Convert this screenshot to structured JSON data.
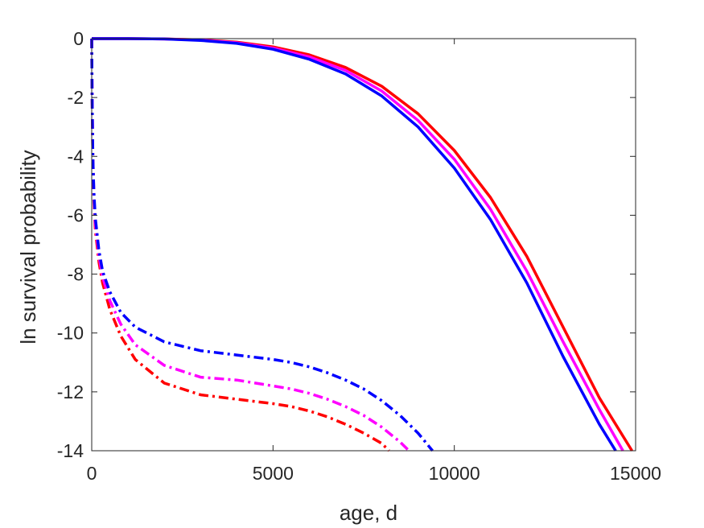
{
  "chart_data": {
    "type": "line",
    "xlabel": "age, d",
    "ylabel": "ln survival probability",
    "xlim": [
      0,
      15000
    ],
    "ylim": [
      -14,
      0
    ],
    "xticks": [
      0,
      5000,
      10000,
      15000
    ],
    "yticks": [
      0,
      -2,
      -4,
      -6,
      -8,
      -10,
      -12,
      -14
    ],
    "grid": false,
    "box": true,
    "series": [
      {
        "color": "#ff0000",
        "style": "solid",
        "x": [
          0,
          50,
          1000,
          2000,
          3000,
          4000,
          5000,
          6000,
          7000,
          8000,
          9000,
          10000,
          11000,
          12000,
          13000,
          14000,
          14900
        ],
        "y": [
          0,
          0,
          0,
          -0.01,
          -0.04,
          -0.12,
          -0.28,
          -0.55,
          -0.98,
          -1.62,
          -2.55,
          -3.8,
          -5.4,
          -7.4,
          -9.8,
          -12.2,
          -14
        ]
      },
      {
        "color": "#ff00ff",
        "style": "solid",
        "x": [
          0,
          50,
          1000,
          2000,
          3000,
          4000,
          5000,
          6000,
          7000,
          8000,
          9000,
          10000,
          11000,
          12000,
          13000,
          14000,
          14650
        ],
        "y": [
          0,
          0,
          0,
          -0.01,
          -0.05,
          -0.14,
          -0.32,
          -0.62,
          -1.08,
          -1.78,
          -2.78,
          -4.1,
          -5.8,
          -7.9,
          -10.3,
          -12.6,
          -14
        ]
      },
      {
        "color": "#0000ff",
        "style": "solid",
        "x": [
          0,
          50,
          1000,
          2000,
          3000,
          4000,
          5000,
          6000,
          7000,
          8000,
          9000,
          10000,
          11000,
          12000,
          13000,
          14000,
          14450
        ],
        "y": [
          0,
          0,
          0,
          -0.01,
          -0.06,
          -0.16,
          -0.36,
          -0.7,
          -1.2,
          -1.95,
          -3.0,
          -4.4,
          -6.15,
          -8.3,
          -10.8,
          -13.1,
          -14
        ]
      },
      {
        "color": "#ff0000",
        "style": "dashdot",
        "x": [
          0,
          10,
          30,
          60,
          100,
          200,
          300,
          500,
          800,
          1200,
          2000,
          3000,
          4000,
          5000,
          5500,
          6000,
          6500,
          7000,
          7500,
          8000,
          8200
        ],
        "y": [
          0,
          -2,
          -4,
          -5.5,
          -6.5,
          -7.6,
          -8.3,
          -9.2,
          -10.1,
          -10.9,
          -11.7,
          -12.1,
          -12.25,
          -12.4,
          -12.5,
          -12.65,
          -12.85,
          -13.1,
          -13.4,
          -13.75,
          -14
        ]
      },
      {
        "color": "#ff00ff",
        "style": "dashdot",
        "x": [
          0,
          10,
          30,
          60,
          100,
          200,
          300,
          500,
          800,
          1200,
          2000,
          3000,
          4000,
          5000,
          5500,
          6000,
          6500,
          7000,
          7500,
          8000,
          8500,
          8750
        ],
        "y": [
          0,
          -2,
          -4,
          -5.3,
          -6.3,
          -7.4,
          -8.1,
          -8.9,
          -9.7,
          -10.4,
          -11.1,
          -11.5,
          -11.6,
          -11.8,
          -11.9,
          -12.05,
          -12.25,
          -12.5,
          -12.8,
          -13.2,
          -13.7,
          -14
        ]
      },
      {
        "color": "#0000ff",
        "style": "dashdot",
        "x": [
          0,
          10,
          30,
          60,
          100,
          200,
          300,
          500,
          800,
          1200,
          2000,
          3000,
          4000,
          5000,
          5500,
          6000,
          6500,
          7000,
          7500,
          8000,
          8500,
          9000,
          9400
        ],
        "y": [
          0,
          -2,
          -4,
          -5.2,
          -6.1,
          -7.2,
          -7.9,
          -8.6,
          -9.3,
          -9.8,
          -10.3,
          -10.6,
          -10.75,
          -10.9,
          -11.0,
          -11.15,
          -11.35,
          -11.6,
          -11.9,
          -12.3,
          -12.8,
          -13.4,
          -14
        ]
      }
    ]
  }
}
